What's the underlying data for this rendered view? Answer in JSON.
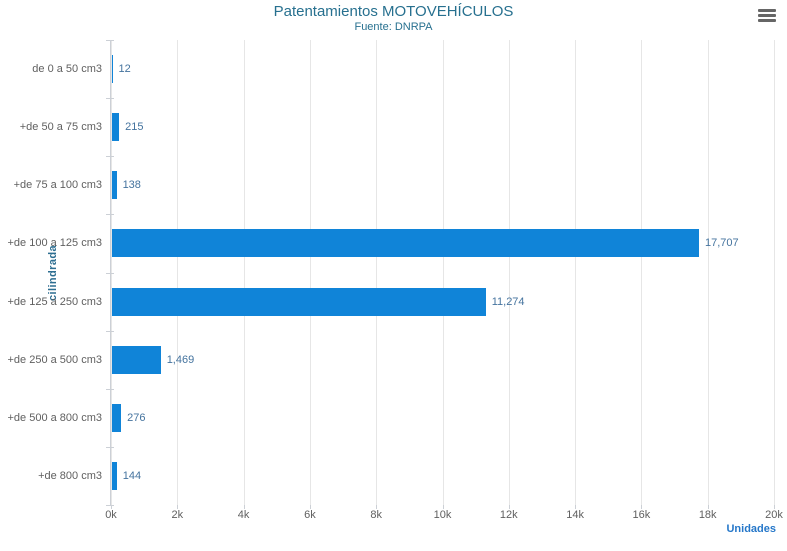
{
  "chart_data": {
    "type": "bar",
    "title": "Patentamientos MOTOVEHÍCULOS",
    "subtitle": "Fuente: DNRPA",
    "xlabel": "Unidades",
    "ylabel": "cilindrada",
    "categories": [
      "de 0 a 50 cm3",
      "+de 50 a 75 cm3",
      "+de 75 a 100 cm3",
      "+de 100 a 125 cm3",
      "+de 125 a 250 cm3",
      "+de 250 a 500 cm3",
      "+de 500 a 800 cm3",
      "+de 800 cm3"
    ],
    "values": [
      12,
      215,
      138,
      17707,
      11274,
      1469,
      276,
      144
    ],
    "value_labels": [
      "12",
      "215",
      "138",
      "17,707",
      "11,274",
      "1,469",
      "276",
      "144"
    ],
    "xlim": [
      0,
      20000
    ],
    "x_tick_interval": 2000,
    "x_tick_labels": [
      "0k",
      "2k",
      "4k",
      "6k",
      "8k",
      "10k",
      "12k",
      "14k",
      "16k",
      "18k",
      "20k"
    ],
    "grid": true,
    "legend": false,
    "colors": {
      "bar": "#1084d8",
      "data_label": "#44739e",
      "title": "#27708f",
      "subtitle": "#27708f",
      "category_label": "#606060",
      "tick_label": "#606060",
      "axis_title_x": "#2577c9",
      "axis_title_y": "#2d6e91",
      "gridline": "#e6e6e6",
      "axis_line": "#ccd0d6",
      "export_icon": "#666666"
    }
  },
  "toolbar": {
    "export_icon": "hamburger-menu-icon"
  }
}
